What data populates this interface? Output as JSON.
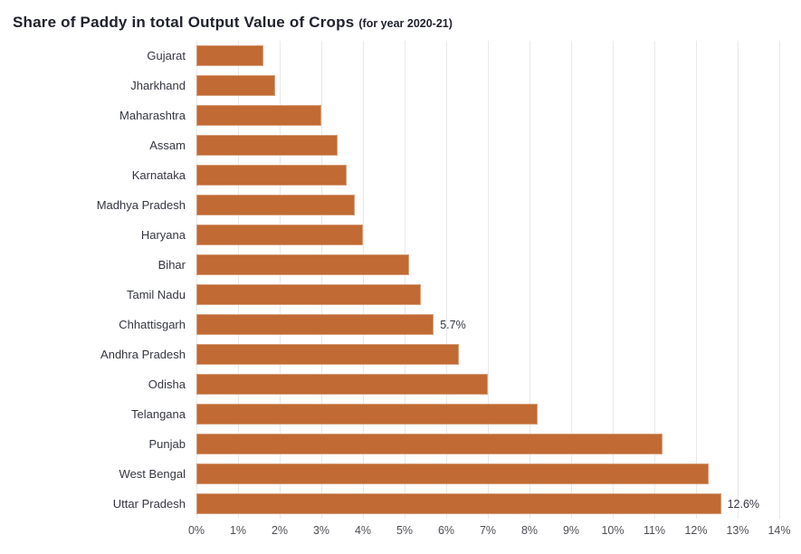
{
  "title": {
    "main": "Share of Paddy in total Output Value of Crops",
    "suffix": "(for year 2020-21)"
  },
  "chart_data": {
    "type": "bar",
    "orientation": "horizontal",
    "title": "Share of Paddy in total Output Value of Crops",
    "subtitle": "(for year 2020-21)",
    "categories": [
      "Gujarat",
      "Jharkhand",
      "Maharashtra",
      "Assam",
      "Karnataka",
      "Madhya Pradesh",
      "Haryana",
      "Bihar",
      "Tamil Nadu",
      "Chhattisgarh",
      "Andhra Pradesh",
      "Odisha",
      "Telangana",
      "Punjab",
      "West Bengal",
      "Uttar Pradesh"
    ],
    "values": [
      1.6,
      1.9,
      3.0,
      3.4,
      3.6,
      3.8,
      4.0,
      5.1,
      5.4,
      5.7,
      6.3,
      7.0,
      8.2,
      11.2,
      12.3,
      12.6
    ],
    "annotations": [
      "",
      "",
      "",
      "",
      "",
      "",
      "",
      "",
      "",
      "5.7%",
      "",
      "",
      "",
      "",
      "",
      "12.6%"
    ],
    "x_ticks": [
      "0%",
      "1%",
      "2%",
      "3%",
      "4%",
      "5%",
      "6%",
      "7%",
      "8%",
      "9%",
      "10%",
      "11%",
      "12%",
      "13%",
      "14%"
    ],
    "xlim": [
      0,
      14
    ],
    "xlabel": "",
    "ylabel": "",
    "grid": true,
    "legend": false,
    "bar_color": "#c16a33",
    "gridline_color": "#e9e9ea",
    "label_color": "#343640",
    "tick_color": "#4e4f55"
  }
}
